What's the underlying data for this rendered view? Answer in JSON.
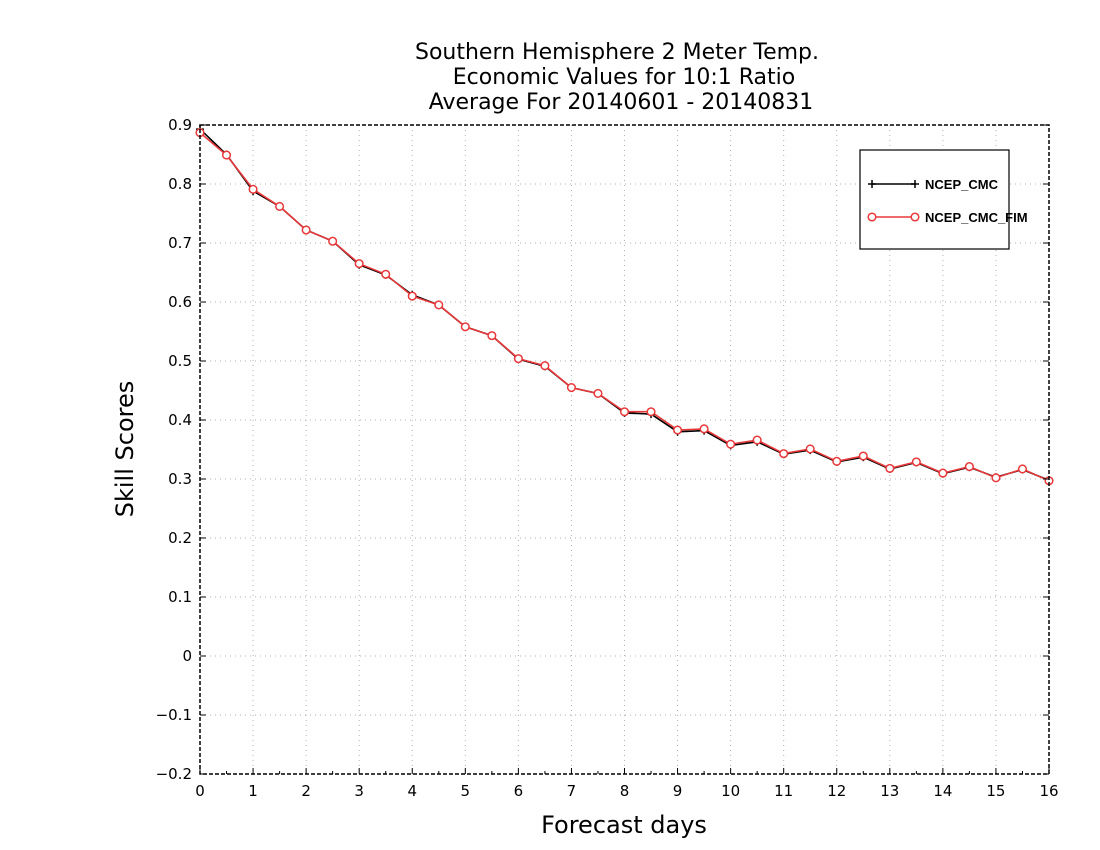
{
  "chart_data": {
    "type": "line",
    "title": [
      "Southern Hemisphere 2 Meter Temp.",
      "Economic Values for 10:1 Ratio",
      "Average For 20140601 - 20140831"
    ],
    "xlabel": "Forecast days",
    "ylabel": "Skill Scores",
    "xlim": [
      0,
      16
    ],
    "ylim": [
      -0.2,
      0.9
    ],
    "xticks": [
      "0",
      "1",
      "2",
      "3",
      "4",
      "5",
      "6",
      "7",
      "8",
      "9",
      "10",
      "11",
      "12",
      "13",
      "14",
      "15",
      "16"
    ],
    "yticks": [
      "-0.2",
      "-0.1",
      "0",
      "0.1",
      "0.2",
      "0.3",
      "0.4",
      "0.5",
      "0.6",
      "0.7",
      "0.8",
      "0.9"
    ],
    "grid": true,
    "legend_position": "top-right",
    "x": [
      0,
      0.5,
      1,
      1.5,
      2,
      2.5,
      3,
      3.5,
      4,
      4.5,
      5,
      5.5,
      6,
      6.5,
      7,
      7.5,
      8,
      8.5,
      9,
      9.5,
      10,
      10.5,
      11,
      11.5,
      12,
      12.5,
      13,
      13.5,
      14,
      14.5,
      15,
      15.5,
      16
    ],
    "series": [
      {
        "name": "NCEP_CMC",
        "color": "#000000",
        "marker": "plus",
        "values": [
          0.893,
          0.85,
          0.788,
          0.762,
          0.722,
          0.703,
          0.663,
          0.646,
          0.612,
          0.595,
          0.558,
          0.543,
          0.503,
          0.491,
          0.455,
          0.445,
          0.412,
          0.41,
          0.38,
          0.382,
          0.357,
          0.363,
          0.342,
          0.349,
          0.329,
          0.337,
          0.317,
          0.328,
          0.309,
          0.32,
          0.303,
          0.316,
          0.298
        ]
      },
      {
        "name": "NCEP_CMC_FIM",
        "color": "#e8383a",
        "marker": "circle",
        "values": [
          0.887,
          0.849,
          0.791,
          0.762,
          0.722,
          0.703,
          0.665,
          0.647,
          0.61,
          0.595,
          0.558,
          0.543,
          0.504,
          0.492,
          0.455,
          0.445,
          0.414,
          0.414,
          0.383,
          0.385,
          0.359,
          0.366,
          0.343,
          0.351,
          0.33,
          0.339,
          0.318,
          0.329,
          0.31,
          0.321,
          0.302,
          0.317,
          0.297
        ]
      }
    ]
  }
}
